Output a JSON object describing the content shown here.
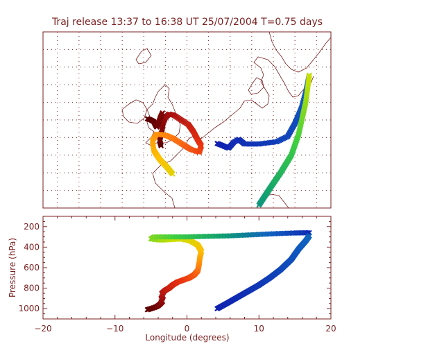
{
  "title": "Traj release 13:37 to 16:38 UT 25/07/2004     T=0.75 days",
  "colors": {
    "axis": "#7a1f1f",
    "gradient": [
      "#5a0000",
      "#aa1010",
      "#e83010",
      "#ff7a10",
      "#ffc000",
      "#c8e000",
      "#40d040",
      "#10a070",
      "#1060c0",
      "#1020b0"
    ]
  },
  "chart_data": [
    {
      "type": "scatter",
      "name": "map",
      "xlim": [
        -20,
        20
      ],
      "ylim": [
        35,
        65
      ],
      "grid": true,
      "trajectories": [
        {
          "id": "west",
          "x": [
            -3.6,
            -3.8,
            -3.5,
            -3.3,
            -3.0,
            -2.5,
            -1.8,
            -0.8,
            0.2,
            0.9,
            1.5,
            2.0,
            1.7,
            0.5,
            -0.8,
            -2.0,
            -3.0,
            -4.2,
            -4.8,
            -4.6,
            -3.8,
            -2.8,
            -2.0
          ],
          "y": [
            45.6,
            46.5,
            48.0,
            49.5,
            50.4,
            51.0,
            50.8,
            50.0,
            49.2,
            48.0,
            46.6,
            45.6,
            44.5,
            45.0,
            46.0,
            46.9,
            47.4,
            47.6,
            46.5,
            44.8,
            43.3,
            42.0,
            40.8
          ]
        },
        {
          "id": "west2",
          "x": [
            -5.5,
            -5.0,
            -4.6,
            -4.4,
            -4.2,
            -3.9,
            -3.7,
            -3.4
          ],
          "y": [
            50.2,
            50.0,
            49.7,
            49.2,
            48.8,
            49.6,
            50.4,
            51.2
          ]
        },
        {
          "id": "east",
          "x": [
            4.2,
            5.0,
            5.8,
            6.5,
            7.2,
            8.0,
            10.0,
            12.5,
            14.0,
            15.0,
            15.9,
            16.5,
            17.0
          ],
          "y": [
            46.0,
            45.6,
            45.2,
            46.2,
            46.7,
            45.9,
            45.9,
            46.3,
            47.2,
            49.4,
            52.0,
            54.7,
            57.6
          ]
        },
        {
          "id": "east2",
          "x": [
            10.0,
            11.5,
            13.0,
            14.5,
            15.5,
            16.5,
            17.0
          ],
          "y": [
            35.5,
            38.3,
            41.0,
            44.0,
            47.5,
            53.0,
            57.6
          ]
        }
      ]
    },
    {
      "type": "scatter",
      "name": "pressure-longitude",
      "xlabel": "Longitude  (degrees)",
      "ylabel": "Pressure  (hPa)",
      "xlim": [
        -20,
        20
      ],
      "ylim": [
        1100,
        100
      ],
      "xticks": [
        "−20",
        "−10",
        "0",
        "10",
        "20"
      ],
      "yticks": [
        "200",
        "400",
        "600",
        "800",
        "1000"
      ],
      "trajectories": [
        {
          "id": "west",
          "x": [
            -5.5,
            -4.8,
            -4.2,
            -3.8,
            -3.4,
            -3.6,
            -3.3,
            -3.5,
            -3.0,
            -2.5,
            -2.0,
            -1.3,
            -0.5,
            0.3,
            1.0,
            1.5,
            1.7,
            1.8,
            2.0,
            1.5,
            0.5,
            -0.8,
            -2.0,
            -3.0,
            -4.0,
            -5.0,
            -4.5,
            -3.0,
            0.0,
            3.0,
            6.0,
            9.0,
            12.0,
            15.0,
            17.0
          ],
          "y": [
            1010,
            995,
            980,
            960,
            930,
            900,
            880,
            850,
            820,
            800,
            770,
            740,
            720,
            700,
            670,
            630,
            560,
            500,
            440,
            380,
            340,
            320,
            325,
            330,
            330,
            320,
            300,
            300,
            300,
            295,
            290,
            280,
            270,
            262,
            260
          ]
        },
        {
          "id": "east",
          "x": [
            4.2,
            5.5,
            7.0,
            8.5,
            10.0,
            11.5,
            13.0,
            14.5,
            15.5,
            16.5,
            17.0
          ],
          "y": [
            1000,
            950,
            890,
            830,
            770,
            700,
            620,
            520,
            420,
            340,
            290
          ]
        }
      ]
    }
  ]
}
